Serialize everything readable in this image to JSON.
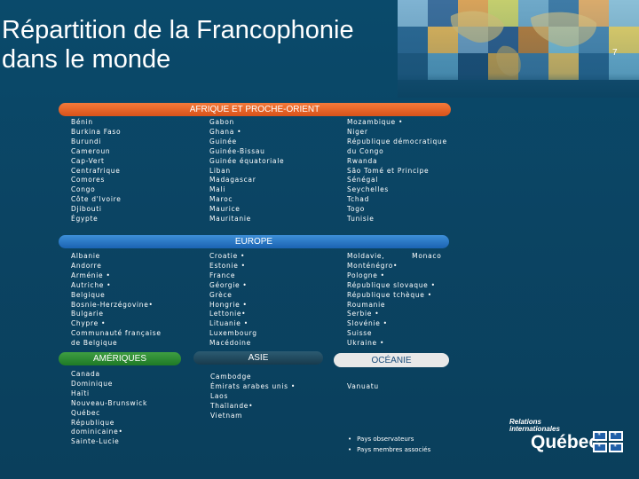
{
  "title_line1": "Répartition de la Francophonie",
  "title_line2": "dans le monde",
  "page_number": "7",
  "sections": {
    "afrique": {
      "label": "AFRIQUE ET PROCHE-ORIENT",
      "col1": [
        "Bénin",
        "Burkina Faso",
        "Burundi",
        "Cameroun",
        "Cap-Vert",
        "Centrafrique",
        "Comores",
        "Congo",
        "Côte d'Ivoire",
        "Djibouti",
        "Égypte"
      ],
      "col2": [
        "Gabon",
        "Ghana •",
        "Guinée",
        "Guinée-Bissau",
        "Guinée équatoriale",
        "Liban",
        "Madagascar",
        "Mali",
        "Maroc",
        "Maurice",
        "Mauritanie"
      ],
      "col3": [
        "Mozambique •",
        "Niger",
        "République démocratique",
        "du Congo",
        "Rwanda",
        "São Tomé et Principe",
        "Sénégal",
        "Seychelles",
        "Tchad",
        "Togo",
        "Tunisie"
      ]
    },
    "europe": {
      "label": "EUROPE",
      "col1": [
        "Albanie",
        "Andorre",
        "Arménie •",
        "Autriche •",
        "Belgique",
        "Bosnie-Herzégovine•",
        "Bulgarie",
        "Chypre •",
        "Communauté française",
        "de Belgique"
      ],
      "col2": [
        "Croatie •",
        "Estonie •",
        "France",
        "Géorgie •",
        "Grèce",
        "Hongrie •",
        "Lettonie•",
        "Lituanie •",
        "Luxembourg",
        "Macédoine"
      ],
      "col3": [
        "Moldavie,          Monaco",
        "Monténégro•",
        "Pologne •",
        "République slovaque •",
        "République tchèque •",
        "Roumanie",
        "Serbie •",
        "Slovénie •",
        "Suisse",
        "Ukraine •"
      ]
    },
    "ameriques": {
      "label": "AMÉRIQUES",
      "items": [
        "Canada",
        "Dominique",
        "Haïti",
        "Nouveau-Brunswick",
        "Québec",
        "République",
        "dominicaine•",
        "Sainte-Lucie"
      ]
    },
    "asie": {
      "label": "ASIE",
      "items": [
        "Cambodge",
        "Émirats arabes unis •",
        "Laos",
        "Thaïlande•",
        "Vietnam"
      ]
    },
    "oceanie": {
      "label": "OCÉANIE",
      "items": [
        "Vanuatu"
      ]
    }
  },
  "legend": [
    "Pays observateurs",
    "Pays membres associés"
  ],
  "logo": {
    "line1": "Relations",
    "line2": "internationales",
    "main": "Québec"
  }
}
